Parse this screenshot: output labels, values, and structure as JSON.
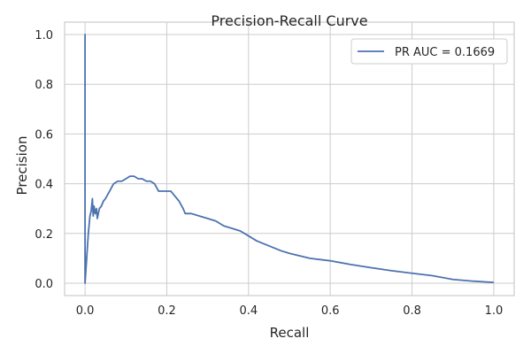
{
  "chart_data": {
    "type": "line",
    "title": "Precision-Recall Curve",
    "xlabel": "Recall",
    "ylabel": "Precision",
    "xlim": [
      -0.05,
      1.05
    ],
    "ylim": [
      -0.05,
      1.05
    ],
    "xticks": [
      "0.0",
      "0.2",
      "0.4",
      "0.6",
      "0.8",
      "1.0"
    ],
    "yticks": [
      "0.0",
      "0.2",
      "0.4",
      "0.6",
      "0.8",
      "1.0"
    ],
    "grid": true,
    "legend_position": "top-right",
    "series": [
      {
        "name": "PR AUC = 0.1669",
        "color": "#4c72b0",
        "x": [
          0.0,
          0.0,
          0.0,
          0.004,
          0.008,
          0.012,
          0.015,
          0.018,
          0.02,
          0.022,
          0.025,
          0.028,
          0.03,
          0.035,
          0.04,
          0.045,
          0.05,
          0.06,
          0.07,
          0.08,
          0.09,
          0.1,
          0.11,
          0.12,
          0.13,
          0.14,
          0.15,
          0.16,
          0.17,
          0.18,
          0.19,
          0.2,
          0.21,
          0.22,
          0.23,
          0.24,
          0.245,
          0.26,
          0.28,
          0.3,
          0.32,
          0.34,
          0.36,
          0.38,
          0.4,
          0.42,
          0.45,
          0.48,
          0.5,
          0.55,
          0.6,
          0.65,
          0.7,
          0.75,
          0.8,
          0.85,
          0.9,
          0.95,
          1.0
        ],
        "y": [
          0.0,
          1.0,
          0.0,
          0.1,
          0.2,
          0.27,
          0.29,
          0.34,
          0.27,
          0.31,
          0.28,
          0.3,
          0.26,
          0.3,
          0.31,
          0.33,
          0.34,
          0.37,
          0.4,
          0.41,
          0.41,
          0.42,
          0.43,
          0.43,
          0.42,
          0.42,
          0.41,
          0.41,
          0.4,
          0.37,
          0.37,
          0.37,
          0.37,
          0.35,
          0.33,
          0.3,
          0.28,
          0.28,
          0.27,
          0.26,
          0.25,
          0.23,
          0.22,
          0.21,
          0.19,
          0.17,
          0.15,
          0.13,
          0.12,
          0.1,
          0.09,
          0.075,
          0.062,
          0.05,
          0.04,
          0.03,
          0.015,
          0.008,
          0.003
        ]
      }
    ]
  }
}
